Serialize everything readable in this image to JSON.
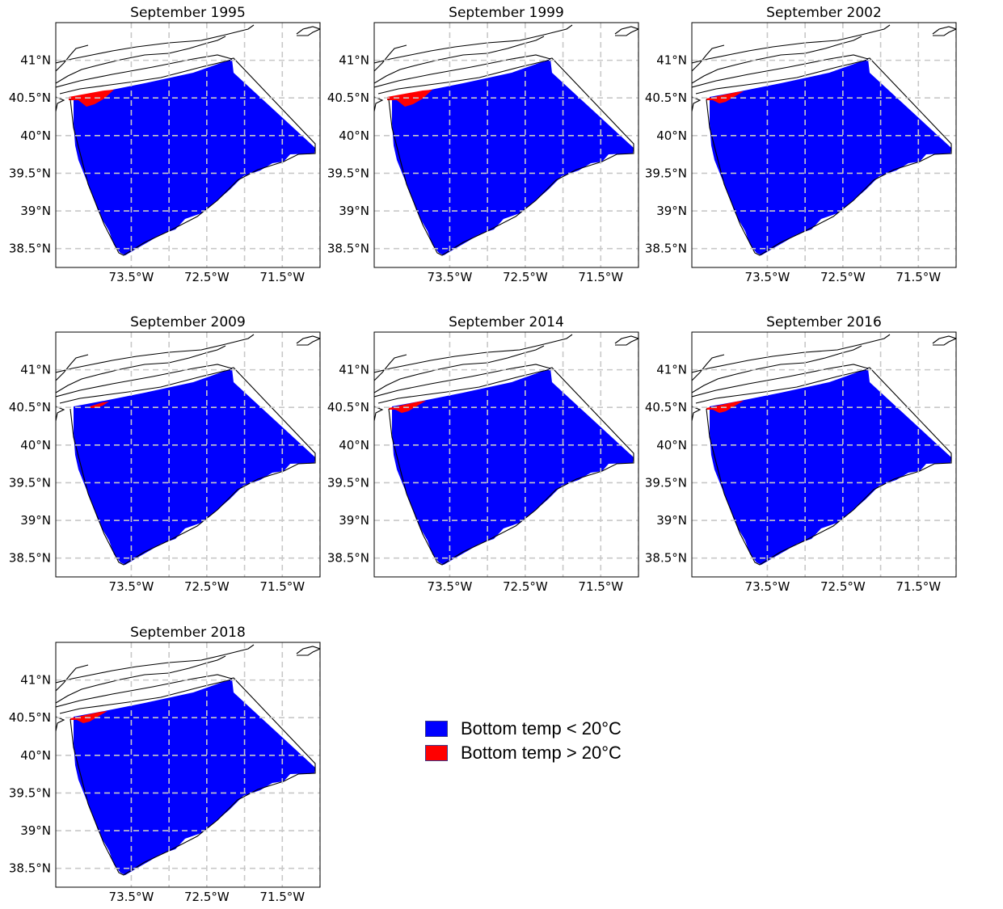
{
  "legend": {
    "items": [
      {
        "label": "Bottom temp < 20°C",
        "color": "#0000ff"
      },
      {
        "label": "Bottom temp > 20°C",
        "color": "#ff0000"
      }
    ]
  },
  "map_axes": {
    "lon_ticks": [
      -73.5,
      -72.5,
      -71.5
    ],
    "lon_tick_labels": [
      "73.5°W",
      "72.5°W",
      "71.5°W"
    ],
    "lat_ticks": [
      41.0,
      40.5,
      40.0,
      39.5,
      39.0,
      38.5
    ],
    "lat_tick_labels": [
      "41°N",
      "40.5°N",
      "40°N",
      "39.5°N",
      "39°N",
      "38.5°N"
    ],
    "lon_range": [
      -74.5,
      -71.0
    ],
    "lat_range": [
      38.25,
      41.5
    ],
    "gridlines": true
  },
  "panels": [
    {
      "title": "September 1995",
      "warm_extent": "large"
    },
    {
      "title": "September 1999",
      "warm_extent": "large"
    },
    {
      "title": "September 2002",
      "warm_extent": "medium"
    },
    {
      "title": "September 2009",
      "warm_extent": "small"
    },
    {
      "title": "September 2014",
      "warm_extent": "medium"
    },
    {
      "title": "September 2016",
      "warm_extent": "medium"
    },
    {
      "title": "September 2018",
      "warm_extent": "medium"
    }
  ],
  "colors": {
    "cold": "#0000ff",
    "warm": "#ff0000",
    "grid": "#c8c8c8",
    "coast": "#000000"
  }
}
